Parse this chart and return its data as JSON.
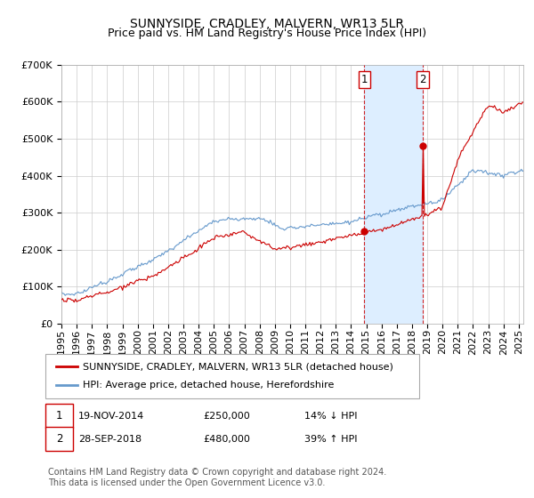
{
  "title": "SUNNYSIDE, CRADLEY, MALVERN, WR13 5LR",
  "subtitle": "Price paid vs. HM Land Registry's House Price Index (HPI)",
  "legend_entry1": "SUNNYSIDE, CRADLEY, MALVERN, WR13 5LR (detached house)",
  "legend_entry2": "HPI: Average price, detached house, Herefordshire",
  "transaction1_date": "19-NOV-2014",
  "transaction1_price": 250000,
  "transaction1_hpi": "14% ↓ HPI",
  "transaction2_date": "28-SEP-2018",
  "transaction2_price": 480000,
  "transaction2_hpi": "39% ↑ HPI",
  "footnote": "Contains HM Land Registry data © Crown copyright and database right 2024.\nThis data is licensed under the Open Government Licence v3.0.",
  "ylim_min": 0,
  "ylim_max": 700000,
  "line_color_property": "#cc0000",
  "line_color_hpi": "#6699cc",
  "vline_color": "#cc0000",
  "shaded_color": "#ddeeff",
  "grid_color": "#cccccc",
  "background_color": "#ffffff",
  "title_fontsize": 10,
  "tick_fontsize": 8,
  "legend_fontsize": 8,
  "annotation_fontsize": 8,
  "footnote_fontsize": 7
}
